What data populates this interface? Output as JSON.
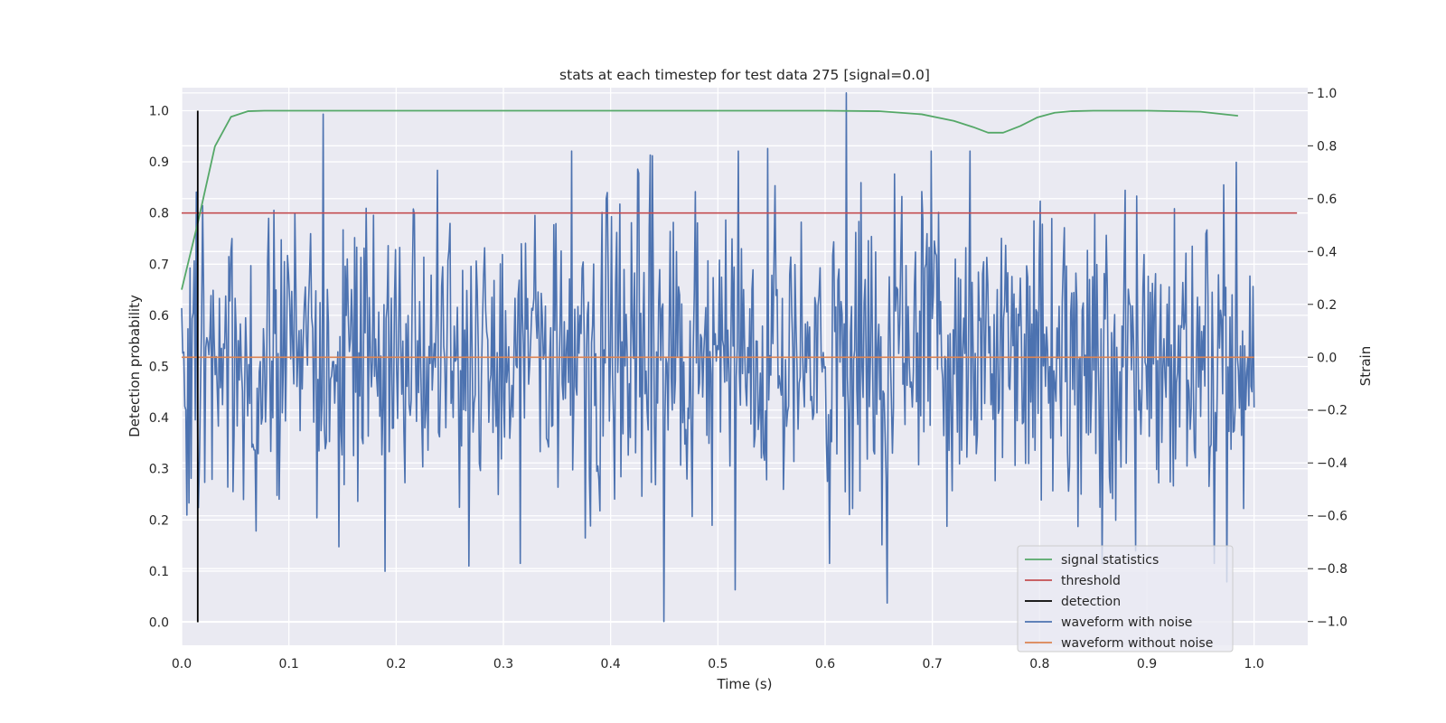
{
  "chart_data": {
    "type": "line",
    "title": "stats at each timestep for test data 275 [signal=0.0]",
    "xlabel": "Time (s)",
    "ylabel": "Detection probability",
    "y2label": "Strain",
    "xlim": [
      0.0,
      1.05
    ],
    "ylim": [
      -0.045,
      1.045
    ],
    "y2lim": [
      -1.09,
      1.02
    ],
    "xticks": [
      "0.0",
      "0.1",
      "0.2",
      "0.3",
      "0.4",
      "0.5",
      "0.6",
      "0.7",
      "0.8",
      "0.9",
      "1.0"
    ],
    "yticks": [
      "0.0",
      "0.1",
      "0.2",
      "0.3",
      "0.4",
      "0.5",
      "0.6",
      "0.7",
      "0.8",
      "0.9",
      "1.0"
    ],
    "y2ticks": [
      "−1.0",
      "−0.8",
      "−0.6",
      "−0.4",
      "−0.2",
      "0.0",
      "0.2",
      "0.4",
      "0.6",
      "0.8",
      "1.0"
    ],
    "grid": true,
    "legend_position": "lower-right",
    "legend": [
      {
        "label": "signal statistics",
        "color": "#55a868"
      },
      {
        "label": "threshold",
        "color": "#c44e52"
      },
      {
        "label": "detection",
        "color": "#000000"
      },
      {
        "label": "waveform with noise",
        "color": "#4c72b0"
      },
      {
        "label": "waveform without noise",
        "color": "#dd8452"
      }
    ],
    "series": [
      {
        "name": "signal statistics",
        "axis": "left",
        "color": "#55a868",
        "x": [
          0.0,
          0.015,
          0.031,
          0.046,
          0.062,
          0.077,
          0.2,
          0.4,
          0.6,
          0.65,
          0.69,
          0.72,
          0.738,
          0.752,
          0.766,
          0.782,
          0.798,
          0.814,
          0.83,
          0.85,
          0.9,
          0.95,
          0.985
        ],
        "y": [
          0.65,
          0.78,
          0.93,
          0.988,
          0.999,
          1.0,
          1.0,
          1.0,
          1.0,
          0.999,
          0.993,
          0.98,
          0.968,
          0.957,
          0.957,
          0.97,
          0.987,
          0.996,
          0.999,
          1.0,
          1.0,
          0.998,
          0.99
        ]
      },
      {
        "name": "threshold",
        "axis": "left",
        "color": "#c44e52",
        "x": [
          0.0,
          1.04
        ],
        "y": [
          0.8,
          0.8
        ]
      },
      {
        "name": "detection",
        "axis": "left",
        "color": "#000000",
        "x": [
          0.015,
          0.015
        ],
        "y": [
          0.0,
          1.0
        ]
      },
      {
        "name": "waveform with noise",
        "axis": "right",
        "color": "#4c72b0",
        "x_start": 0.0,
        "x_end": 1.0,
        "noise_points": 1024,
        "peaks": [
          {
            "x": 0.62,
            "y": 1.0
          },
          {
            "x": 0.132,
            "y": 0.92
          },
          {
            "x": 0.546,
            "y": 0.79
          },
          {
            "x": 0.45,
            "y": -1.0
          },
          {
            "x": 0.658,
            "y": -0.93
          },
          {
            "x": 0.516,
            "y": -0.88
          },
          {
            "x": 0.19,
            "y": -0.81
          },
          {
            "x": 0.268,
            "y": -0.79
          },
          {
            "x": 0.975,
            "y": -0.85
          }
        ]
      },
      {
        "name": "waveform without noise",
        "axis": "right",
        "color": "#dd8452",
        "x": [
          0.0,
          1.0
        ],
        "y": [
          0.0,
          0.0
        ]
      }
    ]
  }
}
